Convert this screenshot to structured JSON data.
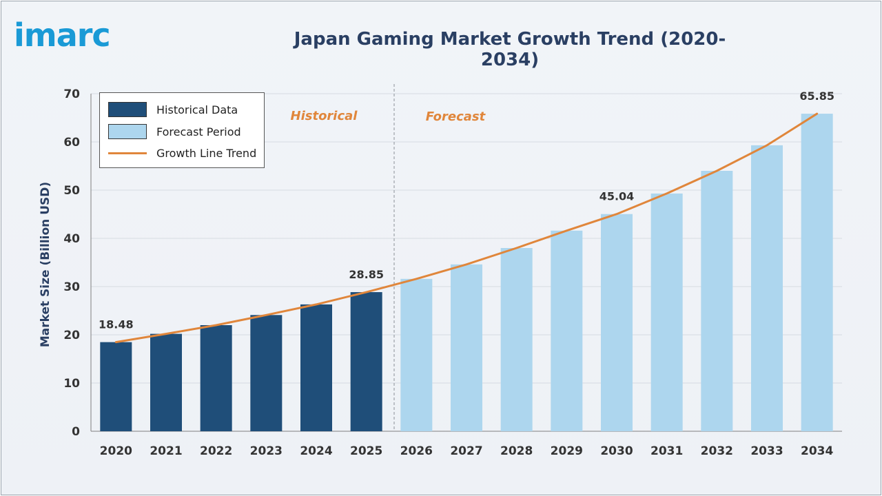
{
  "brand": {
    "logo_text": "imarc"
  },
  "chart_data": {
    "type": "bar",
    "title": "Japan Gaming Market Growth Trend (2020-2034)",
    "ylabel": "Market Size (Billion USD)",
    "xlabel": "",
    "ylim": [
      0,
      70
    ],
    "yticks": [
      0,
      10,
      20,
      30,
      40,
      50,
      60,
      70
    ],
    "categories": [
      "2020",
      "2021",
      "2022",
      "2023",
      "2024",
      "2025",
      "2026",
      "2027",
      "2028",
      "2029",
      "2030",
      "2031",
      "2032",
      "2033",
      "2034"
    ],
    "series": [
      {
        "name": "Historical Data",
        "values": [
          18.48,
          20.2,
          22.0,
          24.1,
          26.3,
          28.85,
          null,
          null,
          null,
          null,
          null,
          null,
          null,
          null,
          null
        ]
      },
      {
        "name": "Forecast Period",
        "values": [
          null,
          null,
          null,
          null,
          null,
          null,
          31.6,
          34.6,
          38.0,
          41.6,
          45.04,
          49.3,
          54.0,
          59.3,
          65.85
        ]
      },
      {
        "name": "Growth Line Trend",
        "values": [
          18.48,
          20.2,
          22.0,
          24.1,
          26.3,
          28.85,
          31.6,
          34.6,
          38.0,
          41.6,
          45.04,
          49.3,
          54.0,
          59.3,
          65.85
        ]
      }
    ],
    "data_labels": [
      {
        "category": "2020",
        "text": "18.48"
      },
      {
        "category": "2025",
        "text": "28.85"
      },
      {
        "category": "2030",
        "text": "45.04"
      },
      {
        "category": "2034",
        "text": "65.85"
      }
    ],
    "section_labels": {
      "historical": "Historical",
      "forecast": "Forecast"
    },
    "legend_position": "top-left",
    "grid": true,
    "colors": {
      "historical": "#1f4e79",
      "forecast": "#add6ee",
      "trend": "#e0863b"
    }
  }
}
